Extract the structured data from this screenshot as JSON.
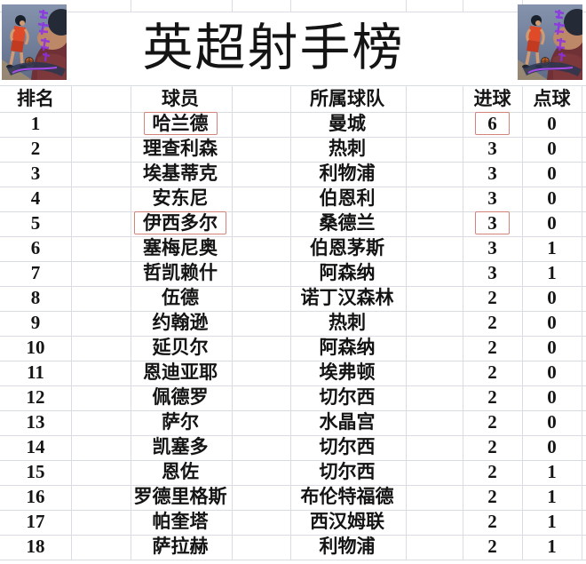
{
  "title": "英超射手榜",
  "corner_illustration": {
    "description": "basketball-player-dribbling-illustration",
    "bg_top": "#8593ad",
    "bg_bottom": "#5f6c88",
    "jersey_red": "#df4a28",
    "accent_purple": "#8e2fe8"
  },
  "colors": {
    "highlight_box": "#d4837b",
    "gridline": "#d9dde3",
    "text": "#141414",
    "background": "#ffffff"
  },
  "table": {
    "headers": {
      "rank": "排名",
      "player": "球员",
      "team": "所属球队",
      "goals": "进球",
      "penalties": "点球"
    },
    "rows": [
      {
        "rank": "1",
        "player": "哈兰德",
        "team": "曼城",
        "goals": "6",
        "penalties": "0",
        "boxed": [
          "player",
          "goals"
        ]
      },
      {
        "rank": "2",
        "player": "理查利森",
        "team": "热刺",
        "goals": "3",
        "penalties": "0",
        "boxed": []
      },
      {
        "rank": "3",
        "player": "埃基蒂克",
        "team": "利物浦",
        "goals": "3",
        "penalties": "0",
        "boxed": []
      },
      {
        "rank": "4",
        "player": "安东尼",
        "team": "伯恩利",
        "goals": "3",
        "penalties": "0",
        "boxed": []
      },
      {
        "rank": "5",
        "player": "伊西多尔",
        "team": "桑德兰",
        "goals": "3",
        "penalties": "0",
        "boxed": [
          "player",
          "goals"
        ]
      },
      {
        "rank": "6",
        "player": "塞梅尼奥",
        "team": "伯恩茅斯",
        "goals": "3",
        "penalties": "1",
        "boxed": []
      },
      {
        "rank": "7",
        "player": "哲凯赖什",
        "team": "阿森纳",
        "goals": "3",
        "penalties": "1",
        "boxed": []
      },
      {
        "rank": "8",
        "player": "伍德",
        "team": "诺丁汉森林",
        "goals": "2",
        "penalties": "0",
        "boxed": []
      },
      {
        "rank": "9",
        "player": "约翰逊",
        "team": "热刺",
        "goals": "2",
        "penalties": "0",
        "boxed": []
      },
      {
        "rank": "10",
        "player": "延贝尔",
        "team": "阿森纳",
        "goals": "2",
        "penalties": "0",
        "boxed": []
      },
      {
        "rank": "11",
        "player": "恩迪亚耶",
        "team": "埃弗顿",
        "goals": "2",
        "penalties": "0",
        "boxed": []
      },
      {
        "rank": "12",
        "player": "佩德罗",
        "team": "切尔西",
        "goals": "2",
        "penalties": "0",
        "boxed": []
      },
      {
        "rank": "13",
        "player": "萨尔",
        "team": "水晶宫",
        "goals": "2",
        "penalties": "0",
        "boxed": []
      },
      {
        "rank": "14",
        "player": "凯塞多",
        "team": "切尔西",
        "goals": "2",
        "penalties": "0",
        "boxed": []
      },
      {
        "rank": "15",
        "player": "恩佐",
        "team": "切尔西",
        "goals": "2",
        "penalties": "1",
        "boxed": []
      },
      {
        "rank": "16",
        "player": "罗德里格斯",
        "team": "布伦特福德",
        "goals": "2",
        "penalties": "1",
        "boxed": []
      },
      {
        "rank": "17",
        "player": "帕奎塔",
        "team": "西汉姆联",
        "goals": "2",
        "penalties": "1",
        "boxed": []
      },
      {
        "rank": "18",
        "player": "萨拉赫",
        "team": "利物浦",
        "goals": "2",
        "penalties": "1",
        "boxed": []
      }
    ]
  }
}
